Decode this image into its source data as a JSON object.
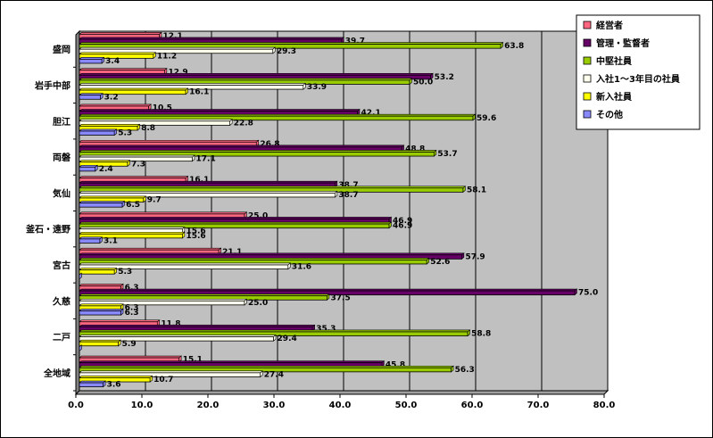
{
  "chart_data": {
    "type": "bar",
    "orientation": "horizontal",
    "categories": [
      "盛岡",
      "岩手中部",
      "胆江",
      "両磐",
      "気仙",
      "釜石・遠野",
      "宮古",
      "久慈",
      "二戸",
      "全地域"
    ],
    "series": [
      {
        "name": "経営者",
        "color": "#ff6680",
        "values": [
          12.1,
          12.9,
          10.5,
          26.8,
          16.1,
          25.0,
          21.1,
          6.3,
          11.8,
          15.1
        ]
      },
      {
        "name": "管理・監督者",
        "color": "#660066",
        "values": [
          39.7,
          53.2,
          42.1,
          48.8,
          38.7,
          46.9,
          57.9,
          75.0,
          35.3,
          45.8
        ]
      },
      {
        "name": "中堅社員",
        "color": "#99cc00",
        "values": [
          63.8,
          50.0,
          59.6,
          53.7,
          58.1,
          46.9,
          52.6,
          37.5,
          58.8,
          56.3
        ]
      },
      {
        "name": "入社1～3年目の社員",
        "color": "#ffffee",
        "values": [
          29.3,
          33.9,
          22.8,
          17.1,
          38.7,
          15.6,
          31.6,
          25.0,
          29.4,
          27.4
        ]
      },
      {
        "name": "新入社員",
        "color": "#ffff00",
        "values": [
          11.2,
          16.1,
          8.8,
          7.3,
          9.7,
          15.6,
          5.3,
          6.3,
          5.9,
          10.7
        ]
      },
      {
        "name": "その他",
        "color": "#8888ff",
        "values": [
          3.4,
          3.2,
          5.3,
          2.4,
          6.5,
          3.1,
          0,
          6.3,
          0,
          3.6
        ]
      }
    ],
    "xlim": [
      0,
      80
    ],
    "x_ticks": [
      "0.0",
      "10.0",
      "20.0",
      "30.0",
      "40.0",
      "50.0",
      "60.0",
      "70.0",
      "80.0"
    ],
    "value_format": "one-decimal",
    "grid": "vertical",
    "plot_background": "#c0c0c0",
    "legend_position": "top-right"
  }
}
